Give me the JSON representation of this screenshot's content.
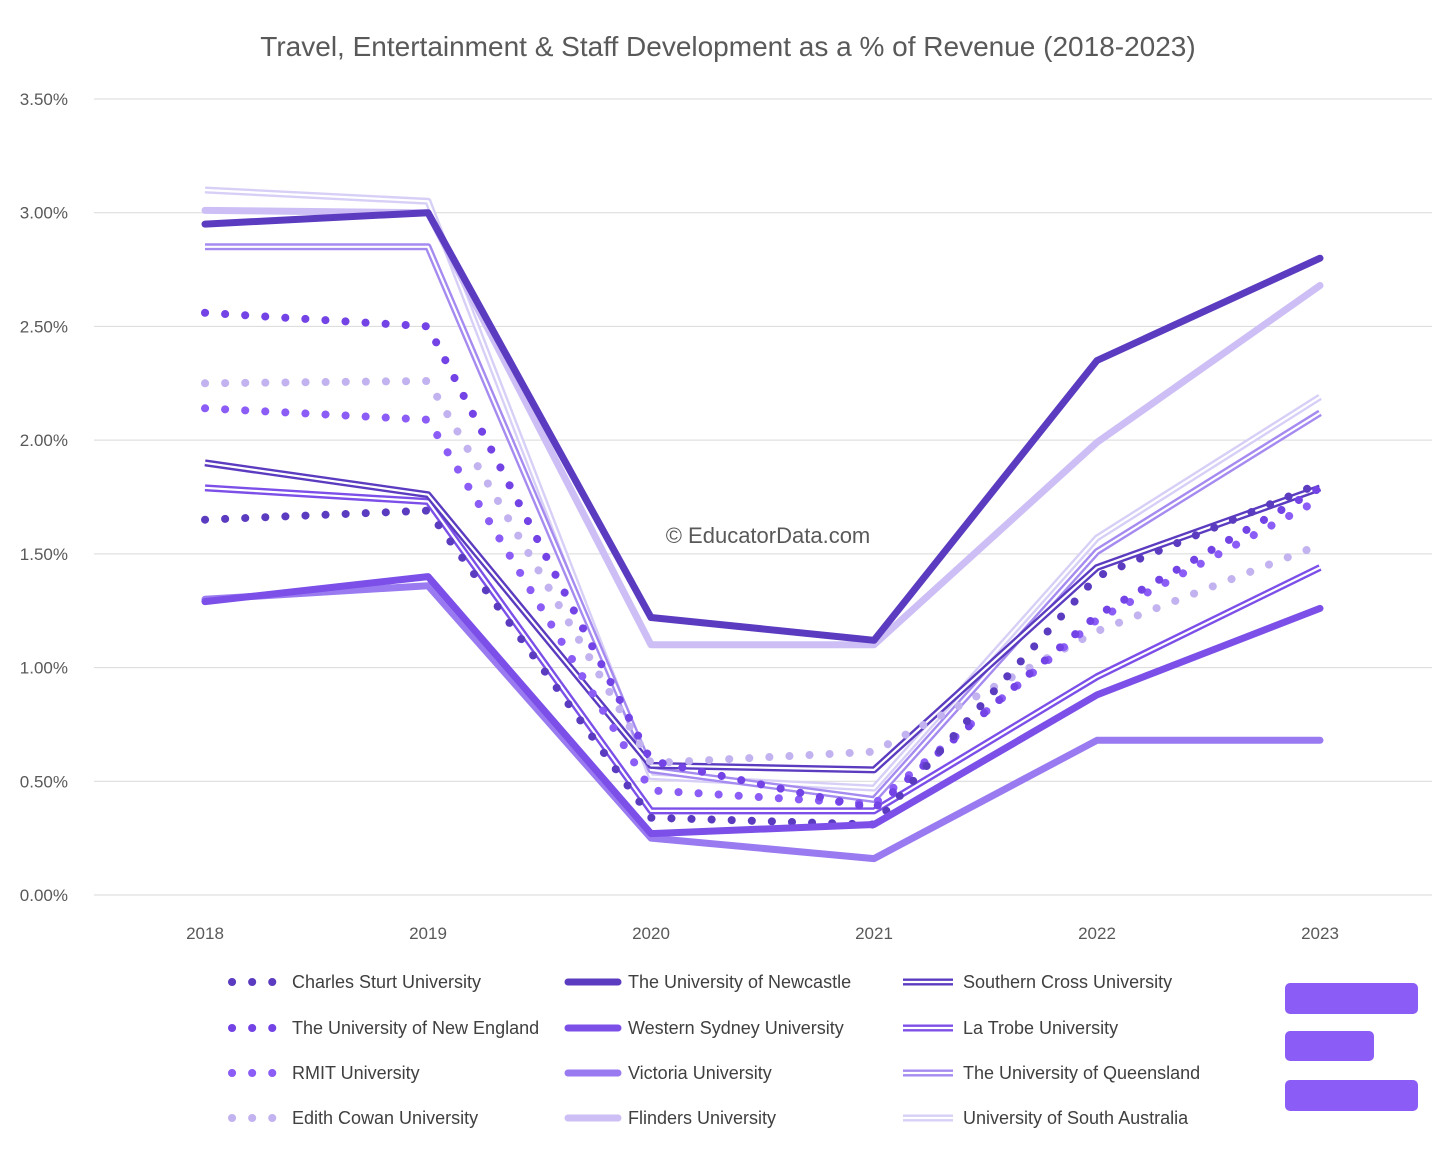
{
  "chart_data": {
    "type": "line",
    "title": "Travel, Entertainment & Staff Development as a % of Revenue (2018-2023)",
    "watermark": "© EducatorData.com",
    "x": [
      "2018",
      "2019",
      "2020",
      "2021",
      "2022",
      "2023"
    ],
    "ylim": [
      0,
      3.5
    ],
    "yticks": [
      {
        "value": 0.0,
        "label": "0.00%"
      },
      {
        "value": 0.5,
        "label": "0.50%"
      },
      {
        "value": 1.0,
        "label": "1.00%"
      },
      {
        "value": 1.5,
        "label": "1.50%"
      },
      {
        "value": 2.0,
        "label": "2.00%"
      },
      {
        "value": 2.5,
        "label": "2.50%"
      },
      {
        "value": 3.0,
        "label": "3.00%"
      },
      {
        "value": 3.5,
        "label": "3.50%"
      }
    ],
    "grid": true,
    "legend_position": "bottom",
    "series": [
      {
        "name": "Charles Sturt University",
        "style": "dotted",
        "color": "#5b3bbf",
        "values": [
          1.65,
          1.69,
          0.34,
          0.31,
          1.4,
          1.81
        ]
      },
      {
        "name": "The University of New England",
        "style": "dotted",
        "color": "#7343e6",
        "values": [
          2.56,
          2.5,
          0.59,
          0.38,
          1.23,
          1.79
        ]
      },
      {
        "name": "RMIT University",
        "style": "dotted",
        "color": "#8b5cf6",
        "values": [
          2.14,
          2.09,
          0.46,
          0.4,
          1.21,
          1.74
        ]
      },
      {
        "name": "Edith Cowan University",
        "style": "dotted",
        "color": "#c2b3f0",
        "values": [
          2.25,
          2.26,
          0.58,
          0.63,
          1.16,
          1.54
        ]
      },
      {
        "name": "The University of Newcastle",
        "style": "thick",
        "color": "#5b3bbf",
        "values": [
          2.95,
          3.0,
          1.22,
          1.12,
          2.35,
          2.8
        ]
      },
      {
        "name": "Western Sydney University",
        "style": "thick",
        "color": "#7b4fe8",
        "values": [
          1.29,
          1.4,
          0.27,
          0.31,
          0.88,
          1.26
        ]
      },
      {
        "name": "Victoria University",
        "style": "thick",
        "color": "#9a7af0",
        "values": [
          1.3,
          1.36,
          0.25,
          0.16,
          0.68,
          0.68
        ]
      },
      {
        "name": "Flinders University",
        "style": "thick",
        "color": "#cdbff5",
        "values": [
          3.01,
          3.0,
          1.1,
          1.1,
          1.99,
          2.68
        ]
      },
      {
        "name": "Southern Cross University",
        "style": "double",
        "color": "#5b3bbf",
        "values": [
          1.9,
          1.76,
          0.57,
          0.55,
          1.44,
          1.79
        ]
      },
      {
        "name": "La Trobe University",
        "style": "double",
        "color": "#7b4fe8",
        "values": [
          1.79,
          1.73,
          0.37,
          0.37,
          0.96,
          1.44
        ]
      },
      {
        "name": "The University of Queensland",
        "style": "double",
        "color": "#a58af0",
        "values": [
          2.85,
          2.85,
          0.55,
          0.42,
          1.51,
          2.12
        ]
      },
      {
        "name": "University of South Australia",
        "style": "double",
        "color": "#d8cff7",
        "values": [
          3.1,
          3.05,
          0.52,
          0.47,
          1.57,
          2.19
        ]
      }
    ]
  },
  "logo": {
    "name": "EducatorData logo",
    "color": "#8b5cf6"
  }
}
